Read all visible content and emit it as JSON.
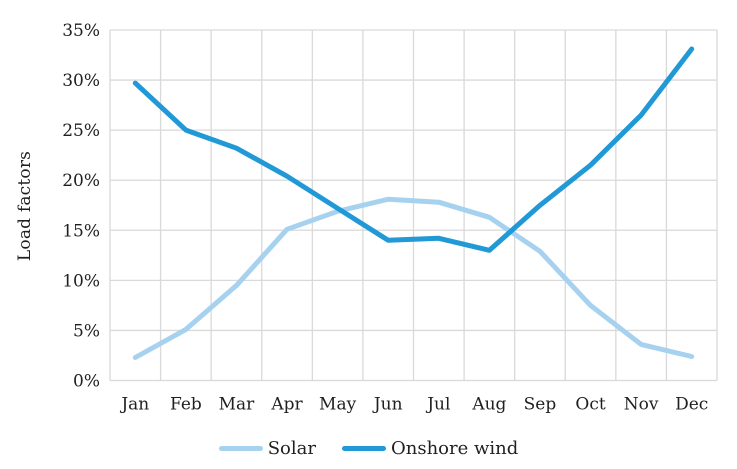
{
  "chart_data": {
    "type": "line",
    "title": "",
    "xlabel": "",
    "ylabel": "Load factors",
    "categories": [
      "Jan",
      "Feb",
      "Mar",
      "Apr",
      "May",
      "Jun",
      "Jul",
      "Aug",
      "Sep",
      "Oct",
      "Nov",
      "Dec"
    ],
    "series": [
      {
        "name": "Solar",
        "color": "#A6D2F0",
        "values": [
          2.3,
          5.1,
          9.5,
          15.1,
          16.9,
          18.1,
          17.8,
          16.3,
          12.9,
          7.5,
          3.6,
          2.4
        ]
      },
      {
        "name": "Onshore wind",
        "color": "#2199D6",
        "values": [
          29.7,
          25.0,
          23.2,
          20.4,
          17.2,
          14.0,
          14.2,
          13.0,
          17.5,
          21.5,
          26.5,
          33.1
        ]
      }
    ],
    "ylim": [
      0,
      35
    ],
    "ytick_step": 5,
    "ytick_labels": [
      "0%",
      "5%",
      "10%",
      "15%",
      "20%",
      "25%",
      "30%",
      "35%"
    ],
    "grid": true,
    "gridline_color": "#D9D9D9",
    "text_color": "#1f1f1f",
    "legend_position": "bottom"
  },
  "legend": {
    "items": [
      {
        "label": "Solar"
      },
      {
        "label": "Onshore wind"
      }
    ]
  }
}
